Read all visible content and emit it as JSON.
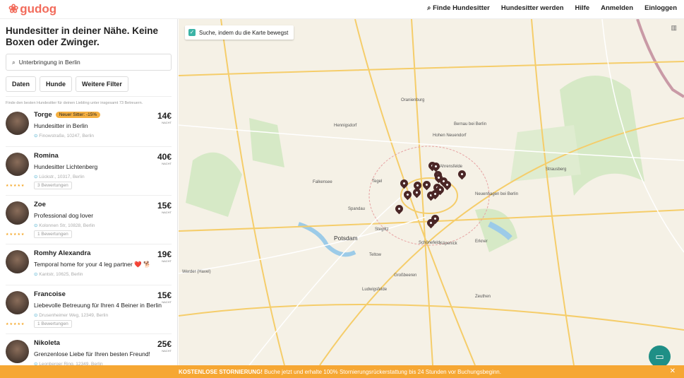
{
  "header": {
    "logo": "gudog",
    "nav": [
      "Finde Hundesitter",
      "Hundesitter werden",
      "Hilfe",
      "Anmelden",
      "Einloggen"
    ]
  },
  "sidebar": {
    "title": "Hundesitter in deiner Nähe. Keine Boxen oder Zwinger.",
    "search_value": "Unterbringung in Berlin",
    "filters": [
      "Daten",
      "Hunde",
      "Weitere Filter"
    ],
    "info": "Finde den besten Hundesitter für deinen Liebling unter insgesamt 73 Betreuern.",
    "price_unit": "NACHT",
    "sitters": [
      {
        "name": "Torge",
        "badge": "Neuer Sitter: -15%",
        "subtitle": "Hundesitter in Berlin",
        "address": "Finowstraße, 10247, Berlin",
        "price": "14€"
      },
      {
        "name": "Romina",
        "subtitle": "Hundesitter Lichtenberg",
        "address": "Lückstr., 10317, Berlin",
        "price": "40€",
        "reviews": "3 Bewertungen",
        "stars": 5
      },
      {
        "name": "Zoe",
        "subtitle": "Professional dog lover",
        "address": "Kolonnen Str, 10828, Berlin",
        "price": "15€",
        "reviews": "1 Bewertungen",
        "stars": 5
      },
      {
        "name": "Romhy Alexandra",
        "subtitle": "Temporal home for your 4 leg partner ❤️ 🐕",
        "address": "Kantstr, 10625, Berlin",
        "price": "19€"
      },
      {
        "name": "Francoise",
        "subtitle": "Liebevolle Betreuung für Ihren 4 Beiner in Berlin",
        "address": "Drusenheimer Weg, 12349, Berlin",
        "price": "15€",
        "reviews": "1 Bewertungen",
        "stars": 5
      },
      {
        "name": "Nikoleta",
        "subtitle": "Grenzenlose Liebe für Ihren besten Freund!",
        "address": "Leonberger Ring, 12349, Berlin",
        "price": "25€"
      }
    ]
  },
  "map": {
    "checkbox_label": "Suche, indem du die Karte bewegst",
    "checked": true,
    "labels": [
      "Oranienburg",
      "Bernau bei Berlin",
      "Hennigsdorf",
      "Falkensee",
      "Spandau",
      "Potsdam",
      "Teltow",
      "Schönefeld",
      "Köpenick",
      "Ahrensfelde",
      "Neuenhagen bei Berlin",
      "Erkner",
      "Großbeeren",
      "Ludwigsfelde",
      "Zeuthen",
      "Strausberg",
      "Hohen Neuendorf",
      "Steglitz",
      "Tegel",
      "Werder (Havel)"
    ],
    "pin_color": "#4a2626"
  },
  "banner": {
    "bold": "KOSTENLOSE STORNIERUNG!",
    "text": " Buche jetzt und erhalte 100% Stornierungsrückerstattung bis 24 Stunden vor Buchungsbeginn."
  },
  "colors": {
    "brand": "#f26b5b",
    "accent": "#3bb3a6",
    "banner": "#f6a733"
  }
}
